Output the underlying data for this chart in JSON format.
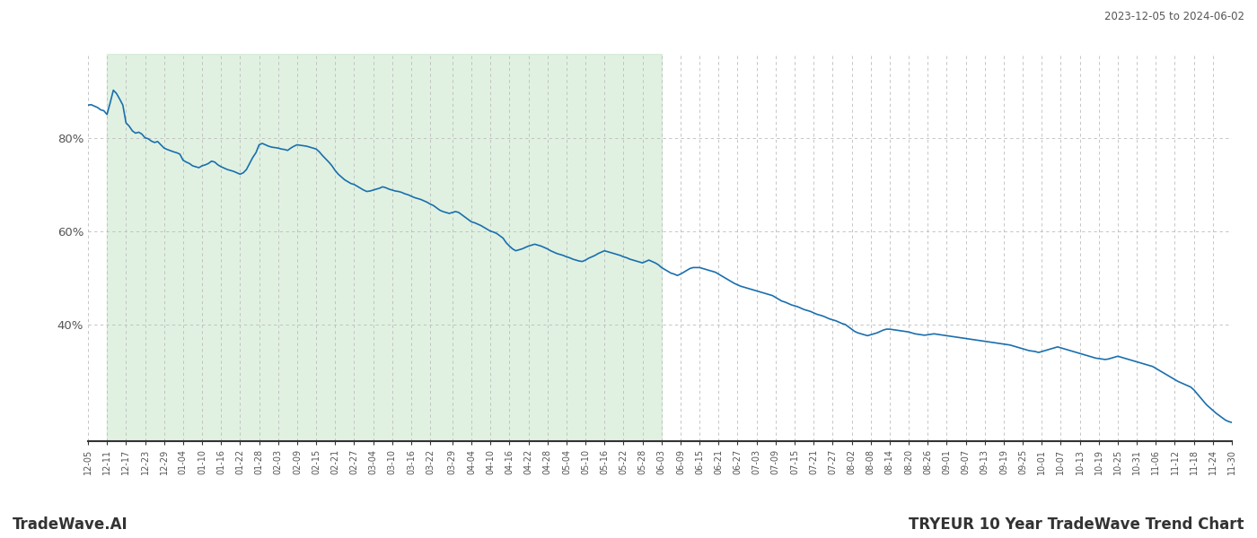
{
  "title_top_right": "2023-12-05 to 2024-06-02",
  "title_bottom_right": "TRYEUR 10 Year TradeWave Trend Chart",
  "title_bottom_left": "TradeWave.AI",
  "line_color": "#1a6faf",
  "line_width": 1.2,
  "shade_color": "#c8e6c9",
  "shade_alpha": 0.55,
  "shade_start": "2023-12-11",
  "shade_end": "2024-06-03",
  "bg_color": "#ffffff",
  "grid_color": "#bbbbbb",
  "grid_style": "--",
  "ylabel_color": "#555555",
  "yticks": [
    0.4,
    0.6,
    0.8
  ],
  "ytick_labels": [
    "40%",
    "60%",
    "80%"
  ],
  "ylim": [
    0.15,
    0.98
  ],
  "x_start": "2023-12-05",
  "x_end": "2024-11-30",
  "xtick_dates": [
    "2023-12-05",
    "2023-12-11",
    "2023-12-17",
    "2023-12-23",
    "2023-12-29",
    "2024-01-04",
    "2024-01-10",
    "2024-01-16",
    "2024-01-22",
    "2024-01-28",
    "2024-02-03",
    "2024-02-09",
    "2024-02-15",
    "2024-02-21",
    "2024-02-27",
    "2024-03-04",
    "2024-03-10",
    "2024-03-16",
    "2024-03-22",
    "2024-03-29",
    "2024-04-04",
    "2024-04-10",
    "2024-04-16",
    "2024-04-22",
    "2024-04-28",
    "2024-05-04",
    "2024-05-10",
    "2024-05-16",
    "2024-05-22",
    "2024-05-28",
    "2024-06-03",
    "2024-06-09",
    "2024-06-15",
    "2024-06-21",
    "2024-06-27",
    "2024-07-03",
    "2024-07-09",
    "2024-07-15",
    "2024-07-21",
    "2024-07-27",
    "2024-08-02",
    "2024-08-08",
    "2024-08-14",
    "2024-08-20",
    "2024-08-26",
    "2024-09-01",
    "2024-09-07",
    "2024-09-13",
    "2024-09-19",
    "2024-09-25",
    "2024-10-01",
    "2024-10-07",
    "2024-10-13",
    "2024-10-19",
    "2024-10-25",
    "2024-10-31",
    "2024-11-06",
    "2024-11-12",
    "2024-11-18",
    "2024-11-24",
    "2024-11-30"
  ],
  "data_points": [
    [
      "2023-12-05",
      0.87
    ],
    [
      "2023-12-06",
      0.871
    ],
    [
      "2023-12-07",
      0.868
    ],
    [
      "2023-12-08",
      0.865
    ],
    [
      "2023-12-09",
      0.86
    ],
    [
      "2023-12-10",
      0.858
    ],
    [
      "2023-12-11",
      0.85
    ],
    [
      "2023-12-12",
      0.875
    ],
    [
      "2023-12-13",
      0.902
    ],
    [
      "2023-12-14",
      0.895
    ],
    [
      "2023-12-15",
      0.883
    ],
    [
      "2023-12-16",
      0.87
    ],
    [
      "2023-12-17",
      0.832
    ],
    [
      "2023-12-18",
      0.825
    ],
    [
      "2023-12-19",
      0.815
    ],
    [
      "2023-12-20",
      0.81
    ],
    [
      "2023-12-21",
      0.812
    ],
    [
      "2023-12-22",
      0.808
    ],
    [
      "2023-12-23",
      0.8
    ],
    [
      "2023-12-24",
      0.798
    ],
    [
      "2023-12-25",
      0.793
    ],
    [
      "2023-12-26",
      0.79
    ],
    [
      "2023-12-27",
      0.792
    ],
    [
      "2023-12-28",
      0.785
    ],
    [
      "2023-12-29",
      0.778
    ],
    [
      "2023-12-30",
      0.775
    ],
    [
      "2024-01-01",
      0.77
    ],
    [
      "2024-01-02",
      0.768
    ],
    [
      "2024-01-03",
      0.765
    ],
    [
      "2024-01-04",
      0.752
    ],
    [
      "2024-01-05",
      0.748
    ],
    [
      "2024-01-06",
      0.745
    ],
    [
      "2024-01-07",
      0.74
    ],
    [
      "2024-01-08",
      0.738
    ],
    [
      "2024-01-09",
      0.736
    ],
    [
      "2024-01-10",
      0.74
    ],
    [
      "2024-01-11",
      0.742
    ],
    [
      "2024-01-12",
      0.745
    ],
    [
      "2024-01-13",
      0.75
    ],
    [
      "2024-01-14",
      0.748
    ],
    [
      "2024-01-15",
      0.742
    ],
    [
      "2024-01-16",
      0.738
    ],
    [
      "2024-01-17",
      0.735
    ],
    [
      "2024-01-18",
      0.732
    ],
    [
      "2024-01-19",
      0.73
    ],
    [
      "2024-01-20",
      0.728
    ],
    [
      "2024-01-21",
      0.725
    ],
    [
      "2024-01-22",
      0.722
    ],
    [
      "2024-01-23",
      0.725
    ],
    [
      "2024-01-24",
      0.732
    ],
    [
      "2024-01-25",
      0.745
    ],
    [
      "2024-01-26",
      0.758
    ],
    [
      "2024-01-27",
      0.768
    ],
    [
      "2024-01-28",
      0.785
    ],
    [
      "2024-01-29",
      0.788
    ],
    [
      "2024-01-30",
      0.785
    ],
    [
      "2024-01-31",
      0.782
    ],
    [
      "2024-02-01",
      0.78
    ],
    [
      "2024-02-02",
      0.779
    ],
    [
      "2024-02-03",
      0.778
    ],
    [
      "2024-02-04",
      0.776
    ],
    [
      "2024-02-05",
      0.775
    ],
    [
      "2024-02-06",
      0.773
    ],
    [
      "2024-02-07",
      0.778
    ],
    [
      "2024-02-08",
      0.782
    ],
    [
      "2024-02-09",
      0.785
    ],
    [
      "2024-02-10",
      0.784
    ],
    [
      "2024-02-11",
      0.783
    ],
    [
      "2024-02-12",
      0.782
    ],
    [
      "2024-02-13",
      0.78
    ],
    [
      "2024-02-14",
      0.778
    ],
    [
      "2024-02-15",
      0.776
    ],
    [
      "2024-02-16",
      0.77
    ],
    [
      "2024-02-17",
      0.762
    ],
    [
      "2024-02-18",
      0.755
    ],
    [
      "2024-02-19",
      0.748
    ],
    [
      "2024-02-20",
      0.74
    ],
    [
      "2024-02-21",
      0.73
    ],
    [
      "2024-02-22",
      0.722
    ],
    [
      "2024-02-23",
      0.716
    ],
    [
      "2024-02-24",
      0.71
    ],
    [
      "2024-02-25",
      0.706
    ],
    [
      "2024-02-26",
      0.702
    ],
    [
      "2024-02-27",
      0.7
    ],
    [
      "2024-02-28",
      0.696
    ],
    [
      "2024-02-29",
      0.692
    ],
    [
      "2024-03-01",
      0.688
    ],
    [
      "2024-03-02",
      0.685
    ],
    [
      "2024-03-03",
      0.686
    ],
    [
      "2024-03-04",
      0.688
    ],
    [
      "2024-03-05",
      0.69
    ],
    [
      "2024-03-06",
      0.692
    ],
    [
      "2024-03-07",
      0.695
    ],
    [
      "2024-03-08",
      0.693
    ],
    [
      "2024-03-09",
      0.69
    ],
    [
      "2024-03-10",
      0.688
    ],
    [
      "2024-03-11",
      0.686
    ],
    [
      "2024-03-12",
      0.685
    ],
    [
      "2024-03-13",
      0.683
    ],
    [
      "2024-03-14",
      0.68
    ],
    [
      "2024-03-15",
      0.678
    ],
    [
      "2024-03-16",
      0.675
    ],
    [
      "2024-03-17",
      0.672
    ],
    [
      "2024-03-18",
      0.67
    ],
    [
      "2024-03-19",
      0.668
    ],
    [
      "2024-03-20",
      0.665
    ],
    [
      "2024-03-21",
      0.662
    ],
    [
      "2024-03-22",
      0.658
    ],
    [
      "2024-03-23",
      0.655
    ],
    [
      "2024-03-24",
      0.65
    ],
    [
      "2024-03-25",
      0.645
    ],
    [
      "2024-03-26",
      0.642
    ],
    [
      "2024-03-27",
      0.64
    ],
    [
      "2024-03-28",
      0.638
    ],
    [
      "2024-03-29",
      0.64
    ],
    [
      "2024-03-30",
      0.642
    ],
    [
      "2024-03-31",
      0.64
    ],
    [
      "2024-04-01",
      0.635
    ],
    [
      "2024-04-02",
      0.63
    ],
    [
      "2024-04-03",
      0.625
    ],
    [
      "2024-04-04",
      0.62
    ],
    [
      "2024-04-05",
      0.618
    ],
    [
      "2024-04-06",
      0.615
    ],
    [
      "2024-04-07",
      0.612
    ],
    [
      "2024-04-08",
      0.608
    ],
    [
      "2024-04-09",
      0.604
    ],
    [
      "2024-04-10",
      0.6
    ],
    [
      "2024-04-11",
      0.598
    ],
    [
      "2024-04-12",
      0.595
    ],
    [
      "2024-04-13",
      0.59
    ],
    [
      "2024-04-14",
      0.585
    ],
    [
      "2024-04-15",
      0.575
    ],
    [
      "2024-04-16",
      0.568
    ],
    [
      "2024-04-17",
      0.562
    ],
    [
      "2024-04-18",
      0.558
    ],
    [
      "2024-04-19",
      0.56
    ],
    [
      "2024-04-20",
      0.562
    ],
    [
      "2024-04-21",
      0.565
    ],
    [
      "2024-04-22",
      0.568
    ],
    [
      "2024-04-23",
      0.57
    ],
    [
      "2024-04-24",
      0.572
    ],
    [
      "2024-04-25",
      0.57
    ],
    [
      "2024-04-26",
      0.568
    ],
    [
      "2024-04-27",
      0.565
    ],
    [
      "2024-04-28",
      0.562
    ],
    [
      "2024-04-29",
      0.558
    ],
    [
      "2024-04-30",
      0.555
    ],
    [
      "2024-05-01",
      0.552
    ],
    [
      "2024-05-02",
      0.55
    ],
    [
      "2024-05-03",
      0.548
    ],
    [
      "2024-05-04",
      0.545
    ],
    [
      "2024-05-05",
      0.543
    ],
    [
      "2024-05-06",
      0.54
    ],
    [
      "2024-05-07",
      0.538
    ],
    [
      "2024-05-08",
      0.536
    ],
    [
      "2024-05-09",
      0.535
    ],
    [
      "2024-05-10",
      0.538
    ],
    [
      "2024-05-11",
      0.542
    ],
    [
      "2024-05-12",
      0.545
    ],
    [
      "2024-05-13",
      0.548
    ],
    [
      "2024-05-14",
      0.552
    ],
    [
      "2024-05-15",
      0.555
    ],
    [
      "2024-05-16",
      0.558
    ],
    [
      "2024-05-17",
      0.556
    ],
    [
      "2024-05-18",
      0.554
    ],
    [
      "2024-05-19",
      0.552
    ],
    [
      "2024-05-20",
      0.55
    ],
    [
      "2024-05-21",
      0.548
    ],
    [
      "2024-05-22",
      0.545
    ],
    [
      "2024-05-23",
      0.543
    ],
    [
      "2024-05-24",
      0.54
    ],
    [
      "2024-05-25",
      0.538
    ],
    [
      "2024-05-26",
      0.536
    ],
    [
      "2024-05-27",
      0.534
    ],
    [
      "2024-05-28",
      0.532
    ],
    [
      "2024-05-29",
      0.535
    ],
    [
      "2024-05-30",
      0.538
    ],
    [
      "2024-05-31",
      0.535
    ],
    [
      "2024-06-01",
      0.532
    ],
    [
      "2024-06-02",
      0.528
    ],
    [
      "2024-06-03",
      0.522
    ],
    [
      "2024-06-04",
      0.518
    ],
    [
      "2024-06-05",
      0.514
    ],
    [
      "2024-06-06",
      0.51
    ],
    [
      "2024-06-07",
      0.508
    ],
    [
      "2024-06-08",
      0.505
    ],
    [
      "2024-06-09",
      0.508
    ],
    [
      "2024-06-10",
      0.512
    ],
    [
      "2024-06-11",
      0.516
    ],
    [
      "2024-06-12",
      0.52
    ],
    [
      "2024-06-13",
      0.522
    ],
    [
      "2024-06-14",
      0.522
    ],
    [
      "2024-06-15",
      0.522
    ],
    [
      "2024-06-16",
      0.52
    ],
    [
      "2024-06-17",
      0.518
    ],
    [
      "2024-06-18",
      0.516
    ],
    [
      "2024-06-19",
      0.514
    ],
    [
      "2024-06-20",
      0.512
    ],
    [
      "2024-06-21",
      0.508
    ],
    [
      "2024-06-22",
      0.504
    ],
    [
      "2024-06-23",
      0.5
    ],
    [
      "2024-06-24",
      0.496
    ],
    [
      "2024-06-25",
      0.492
    ],
    [
      "2024-06-26",
      0.488
    ],
    [
      "2024-06-27",
      0.485
    ],
    [
      "2024-06-28",
      0.482
    ],
    [
      "2024-06-29",
      0.48
    ],
    [
      "2024-06-30",
      0.478
    ],
    [
      "2024-07-01",
      0.476
    ],
    [
      "2024-07-02",
      0.474
    ],
    [
      "2024-07-03",
      0.472
    ],
    [
      "2024-07-04",
      0.47
    ],
    [
      "2024-07-05",
      0.468
    ],
    [
      "2024-07-06",
      0.466
    ],
    [
      "2024-07-07",
      0.464
    ],
    [
      "2024-07-08",
      0.462
    ],
    [
      "2024-07-09",
      0.458
    ],
    [
      "2024-07-10",
      0.454
    ],
    [
      "2024-07-11",
      0.45
    ],
    [
      "2024-07-12",
      0.448
    ],
    [
      "2024-07-13",
      0.445
    ],
    [
      "2024-07-14",
      0.442
    ],
    [
      "2024-07-15",
      0.44
    ],
    [
      "2024-07-16",
      0.438
    ],
    [
      "2024-07-17",
      0.435
    ],
    [
      "2024-07-18",
      0.432
    ],
    [
      "2024-07-19",
      0.43
    ],
    [
      "2024-07-20",
      0.428
    ],
    [
      "2024-07-21",
      0.425
    ],
    [
      "2024-07-22",
      0.422
    ],
    [
      "2024-07-23",
      0.42
    ],
    [
      "2024-07-24",
      0.418
    ],
    [
      "2024-07-25",
      0.415
    ],
    [
      "2024-07-26",
      0.412
    ],
    [
      "2024-07-27",
      0.41
    ],
    [
      "2024-07-28",
      0.408
    ],
    [
      "2024-07-29",
      0.405
    ],
    [
      "2024-07-30",
      0.402
    ],
    [
      "2024-07-31",
      0.4
    ],
    [
      "2024-08-01",
      0.395
    ],
    [
      "2024-08-02",
      0.39
    ],
    [
      "2024-08-03",
      0.385
    ],
    [
      "2024-08-04",
      0.382
    ],
    [
      "2024-08-05",
      0.38
    ],
    [
      "2024-08-06",
      0.378
    ],
    [
      "2024-08-07",
      0.376
    ],
    [
      "2024-08-08",
      0.378
    ],
    [
      "2024-08-09",
      0.38
    ],
    [
      "2024-08-10",
      0.382
    ],
    [
      "2024-08-11",
      0.385
    ],
    [
      "2024-08-12",
      0.388
    ],
    [
      "2024-08-13",
      0.39
    ],
    [
      "2024-08-14",
      0.39
    ],
    [
      "2024-08-15",
      0.389
    ],
    [
      "2024-08-16",
      0.388
    ],
    [
      "2024-08-17",
      0.387
    ],
    [
      "2024-08-18",
      0.386
    ],
    [
      "2024-08-19",
      0.385
    ],
    [
      "2024-08-20",
      0.384
    ],
    [
      "2024-08-21",
      0.382
    ],
    [
      "2024-08-22",
      0.38
    ],
    [
      "2024-08-23",
      0.379
    ],
    [
      "2024-08-24",
      0.378
    ],
    [
      "2024-08-25",
      0.377
    ],
    [
      "2024-08-26",
      0.378
    ],
    [
      "2024-08-27",
      0.379
    ],
    [
      "2024-08-28",
      0.38
    ],
    [
      "2024-08-29",
      0.379
    ],
    [
      "2024-08-30",
      0.378
    ],
    [
      "2024-08-31",
      0.377
    ],
    [
      "2024-09-01",
      0.376
    ],
    [
      "2024-09-02",
      0.375
    ],
    [
      "2024-09-03",
      0.374
    ],
    [
      "2024-09-04",
      0.373
    ],
    [
      "2024-09-05",
      0.372
    ],
    [
      "2024-09-06",
      0.371
    ],
    [
      "2024-09-07",
      0.37
    ],
    [
      "2024-09-08",
      0.369
    ],
    [
      "2024-09-09",
      0.368
    ],
    [
      "2024-09-10",
      0.367
    ],
    [
      "2024-09-11",
      0.366
    ],
    [
      "2024-09-12",
      0.365
    ],
    [
      "2024-09-13",
      0.364
    ],
    [
      "2024-09-14",
      0.363
    ],
    [
      "2024-09-15",
      0.362
    ],
    [
      "2024-09-16",
      0.361
    ],
    [
      "2024-09-17",
      0.36
    ],
    [
      "2024-09-18",
      0.359
    ],
    [
      "2024-09-19",
      0.358
    ],
    [
      "2024-09-20",
      0.357
    ],
    [
      "2024-09-21",
      0.356
    ],
    [
      "2024-09-22",
      0.354
    ],
    [
      "2024-09-23",
      0.352
    ],
    [
      "2024-09-24",
      0.35
    ],
    [
      "2024-09-25",
      0.348
    ],
    [
      "2024-09-26",
      0.346
    ],
    [
      "2024-09-27",
      0.344
    ],
    [
      "2024-09-28",
      0.343
    ],
    [
      "2024-09-29",
      0.342
    ],
    [
      "2024-09-30",
      0.34
    ],
    [
      "2024-10-01",
      0.342
    ],
    [
      "2024-10-02",
      0.344
    ],
    [
      "2024-10-03",
      0.346
    ],
    [
      "2024-10-04",
      0.348
    ],
    [
      "2024-10-05",
      0.35
    ],
    [
      "2024-10-06",
      0.352
    ],
    [
      "2024-10-07",
      0.35
    ],
    [
      "2024-10-08",
      0.348
    ],
    [
      "2024-10-09",
      0.346
    ],
    [
      "2024-10-10",
      0.344
    ],
    [
      "2024-10-11",
      0.342
    ],
    [
      "2024-10-12",
      0.34
    ],
    [
      "2024-10-13",
      0.338
    ],
    [
      "2024-10-14",
      0.336
    ],
    [
      "2024-10-15",
      0.334
    ],
    [
      "2024-10-16",
      0.332
    ],
    [
      "2024-10-17",
      0.33
    ],
    [
      "2024-10-18",
      0.328
    ],
    [
      "2024-10-19",
      0.327
    ],
    [
      "2024-10-20",
      0.326
    ],
    [
      "2024-10-21",
      0.325
    ],
    [
      "2024-10-22",
      0.326
    ],
    [
      "2024-10-23",
      0.328
    ],
    [
      "2024-10-24",
      0.33
    ],
    [
      "2024-10-25",
      0.332
    ],
    [
      "2024-10-26",
      0.33
    ],
    [
      "2024-10-27",
      0.328
    ],
    [
      "2024-10-28",
      0.326
    ],
    [
      "2024-10-29",
      0.324
    ],
    [
      "2024-10-30",
      0.322
    ],
    [
      "2024-10-31",
      0.32
    ],
    [
      "2024-11-01",
      0.318
    ],
    [
      "2024-11-02",
      0.316
    ],
    [
      "2024-11-03",
      0.314
    ],
    [
      "2024-11-04",
      0.312
    ],
    [
      "2024-11-05",
      0.31
    ],
    [
      "2024-11-06",
      0.306
    ],
    [
      "2024-11-07",
      0.302
    ],
    [
      "2024-11-08",
      0.298
    ],
    [
      "2024-11-09",
      0.294
    ],
    [
      "2024-11-10",
      0.29
    ],
    [
      "2024-11-11",
      0.286
    ],
    [
      "2024-11-12",
      0.282
    ],
    [
      "2024-11-13",
      0.278
    ],
    [
      "2024-11-14",
      0.275
    ],
    [
      "2024-11-15",
      0.272
    ],
    [
      "2024-11-16",
      0.269
    ],
    [
      "2024-11-17",
      0.266
    ],
    [
      "2024-11-18",
      0.26
    ],
    [
      "2024-11-19",
      0.252
    ],
    [
      "2024-11-20",
      0.244
    ],
    [
      "2024-11-21",
      0.236
    ],
    [
      "2024-11-22",
      0.228
    ],
    [
      "2024-11-23",
      0.222
    ],
    [
      "2024-11-24",
      0.216
    ],
    [
      "2024-11-25",
      0.21
    ],
    [
      "2024-11-26",
      0.205
    ],
    [
      "2024-11-27",
      0.2
    ],
    [
      "2024-11-28",
      0.195
    ],
    [
      "2024-11-29",
      0.192
    ],
    [
      "2024-11-30",
      0.19
    ]
  ]
}
